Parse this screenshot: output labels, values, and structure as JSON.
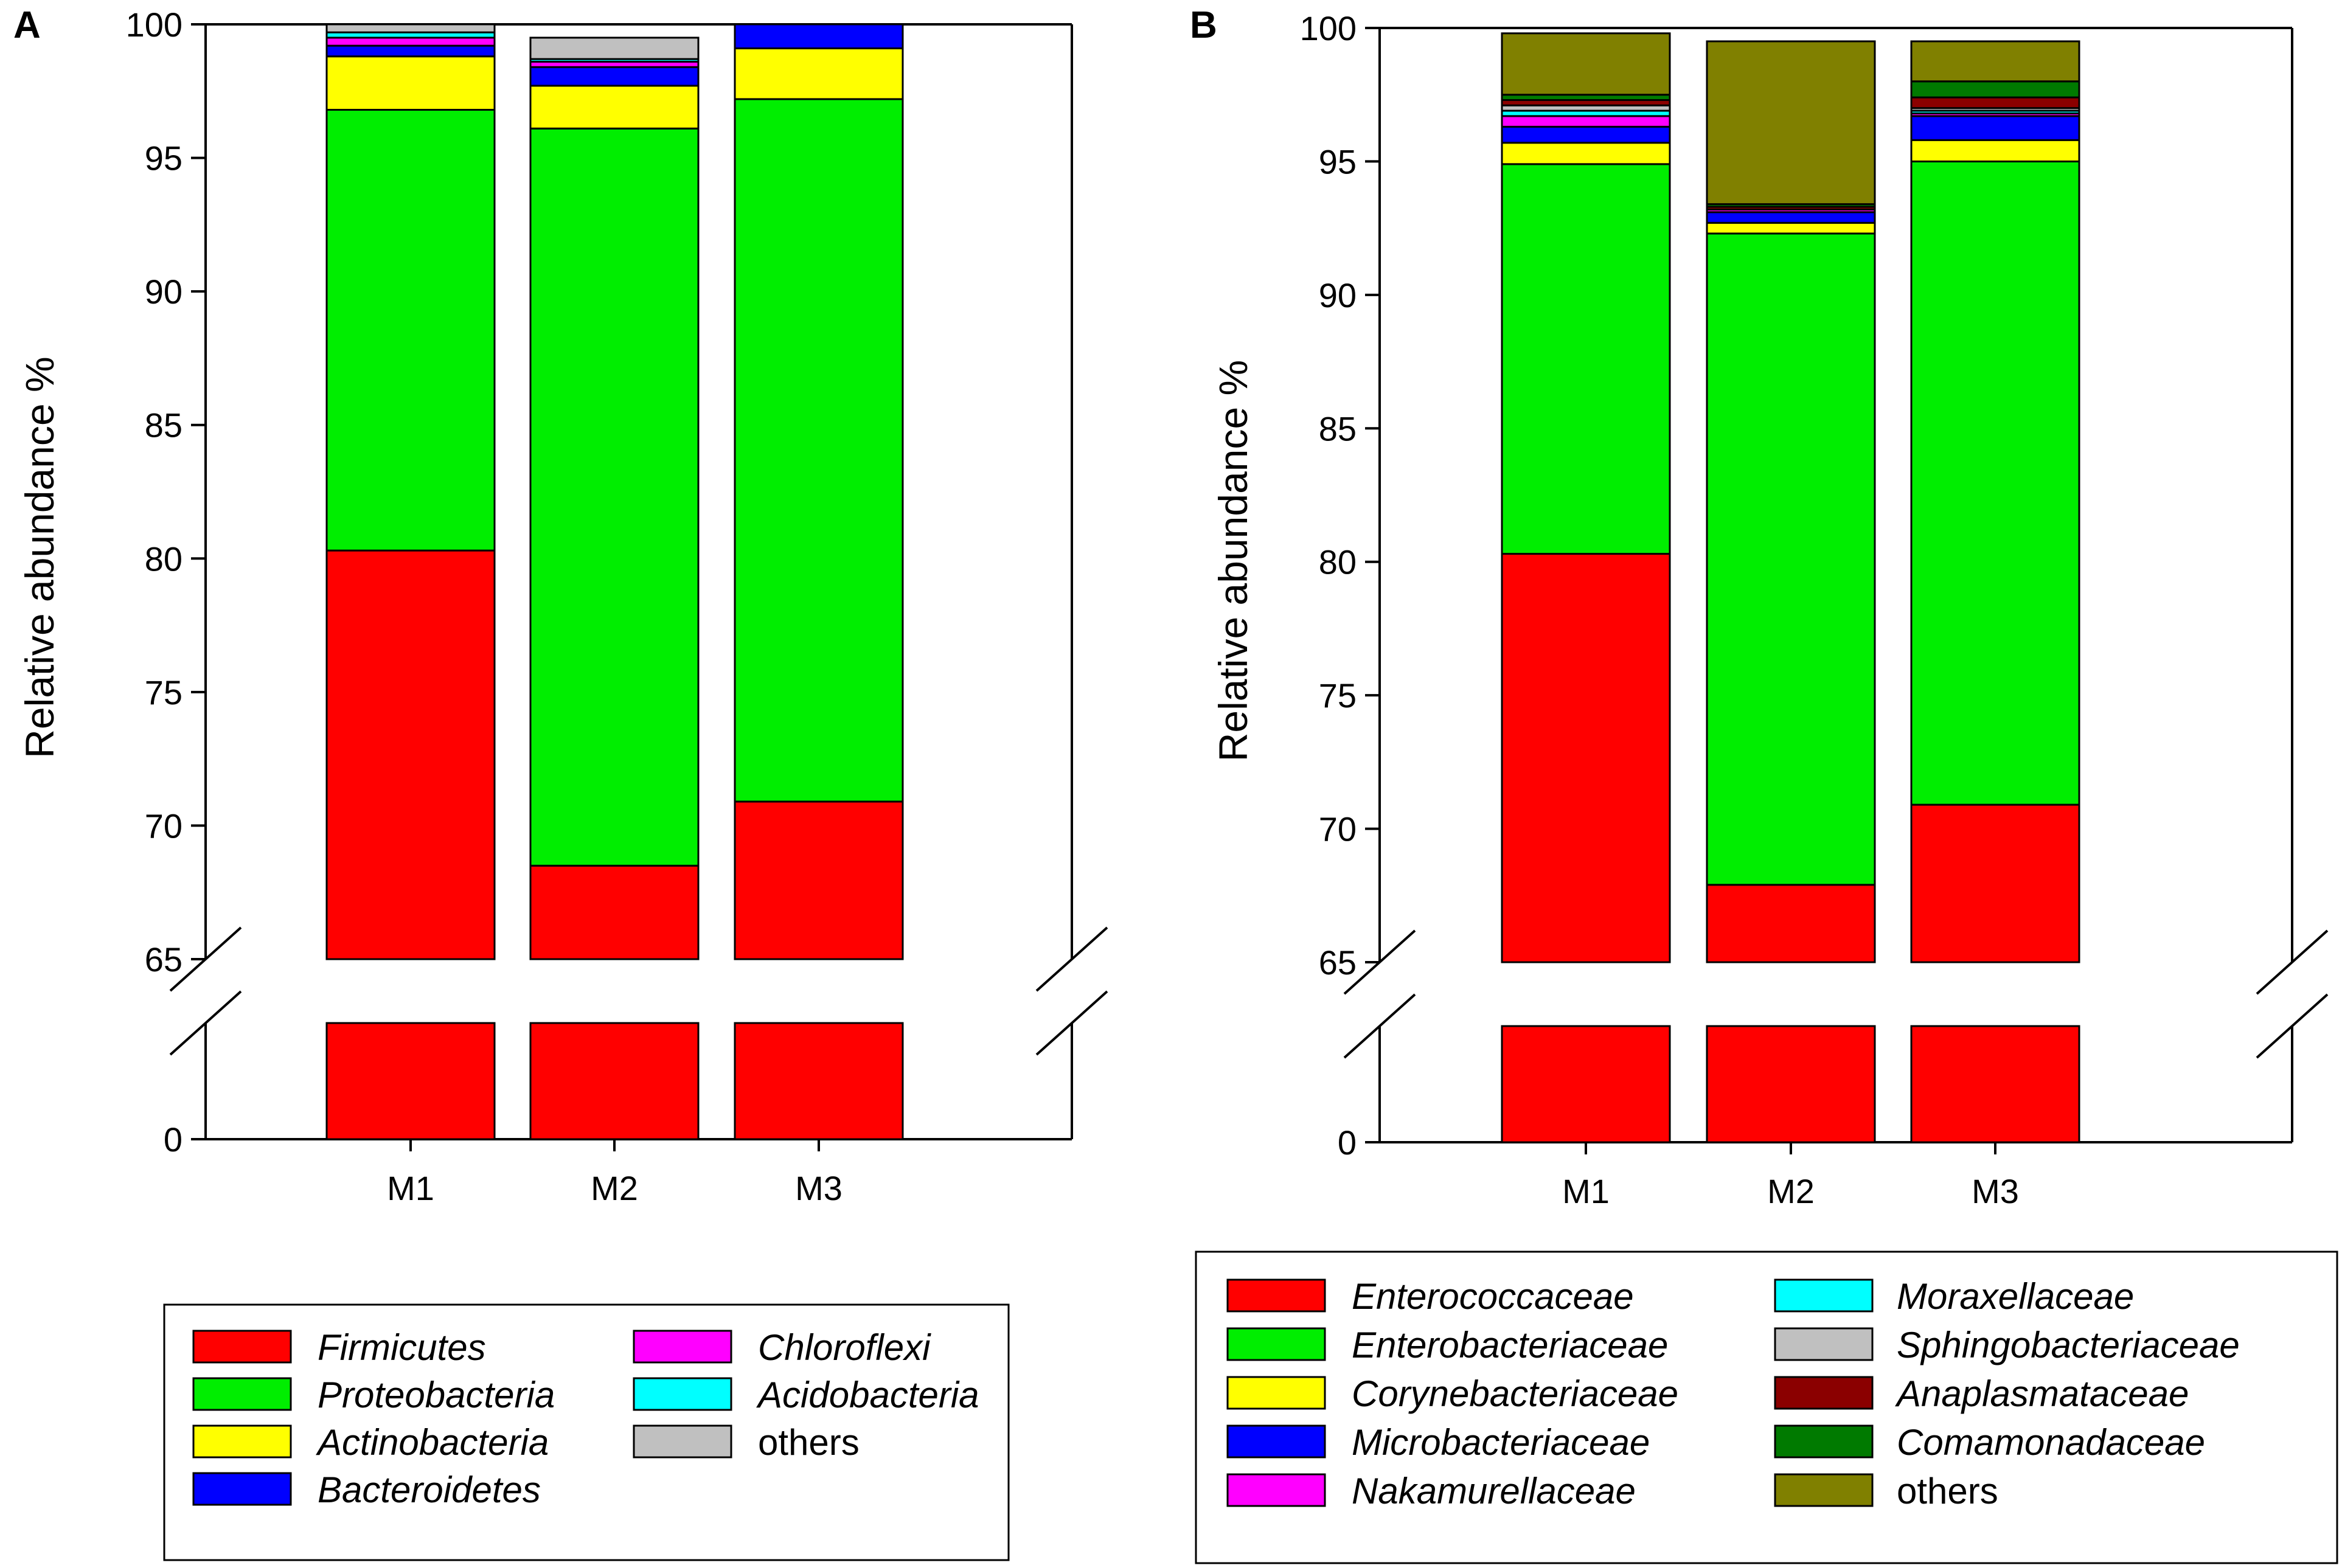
{
  "chart_data": [
    {
      "type": "bar",
      "stacked": true,
      "panel_label": "A",
      "ylabel": "Relative abundance %",
      "xlabel": "",
      "categories": [
        "M1",
        "M2",
        "M3"
      ],
      "y_tick_labels": [
        "0",
        "65",
        "70",
        "75",
        "80",
        "85",
        "90",
        "95",
        "100"
      ],
      "axis_break": {
        "lower_range": [
          0,
          65
        ],
        "upper_range": [
          65,
          100
        ]
      },
      "ylim": [
        65,
        100
      ],
      "legend_position": "bottom",
      "series": [
        {
          "name": "Firmicutes",
          "italic": true,
          "color": "#ff0000",
          "values": [
            80.3,
            68.5,
            70.9
          ]
        },
        {
          "name": "Proteobacteria",
          "italic": true,
          "color": "#00ee00",
          "values": [
            16.5,
            27.6,
            26.3
          ]
        },
        {
          "name": "Actinobacteria",
          "italic": true,
          "color": "#ffff00",
          "values": [
            2.0,
            1.6,
            1.9
          ]
        },
        {
          "name": "Bacteroidetes",
          "italic": true,
          "color": "#0000ff",
          "values": [
            0.4,
            0.7,
            0.9
          ]
        },
        {
          "name": "Chloroflexi",
          "italic": true,
          "color": "#ff00ff",
          "values": [
            0.3,
            0.2,
            0.0
          ]
        },
        {
          "name": "Acidobacteria",
          "italic": true,
          "color": "#00ffff",
          "values": [
            0.2,
            0.1,
            0.0
          ]
        },
        {
          "name": "others",
          "italic": false,
          "color": "#c0c0c0",
          "values": [
            0.3,
            0.8,
            0.0
          ]
        }
      ]
    },
    {
      "type": "bar",
      "stacked": true,
      "panel_label": "B",
      "ylabel": "Relative abundance %",
      "xlabel": "",
      "categories": [
        "M1",
        "M2",
        "M3"
      ],
      "y_tick_labels": [
        "0",
        "65",
        "70",
        "75",
        "80",
        "85",
        "90",
        "95",
        "100"
      ],
      "axis_break": {
        "lower_range": [
          0,
          65
        ],
        "upper_range": [
          65,
          100
        ]
      },
      "ylim": [
        65,
        100
      ],
      "legend_position": "bottom",
      "series": [
        {
          "name": "Enterococcaceae",
          "italic": true,
          "color": "#ff0000",
          "values": [
            80.3,
            67.9,
            70.9
          ]
        },
        {
          "name": "Enterobacteriaceae",
          "italic": true,
          "color": "#00ee00",
          "values": [
            14.6,
            24.4,
            24.1
          ]
        },
        {
          "name": "Corynebacteriaceae",
          "italic": true,
          "color": "#ffff00",
          "values": [
            0.8,
            0.4,
            0.8
          ]
        },
        {
          "name": "Microbacteriaceae",
          "italic": true,
          "color": "#0000ff",
          "values": [
            0.6,
            0.4,
            0.9
          ]
        },
        {
          "name": "Nakamurellaceae",
          "italic": true,
          "color": "#ff00ff",
          "values": [
            0.4,
            0.1,
            0.1
          ]
        },
        {
          "name": "Moraxellaceae",
          "italic": true,
          "color": "#00ffff",
          "values": [
            0.2,
            0.0,
            0.1
          ]
        },
        {
          "name": "Sphingobacteriaceae",
          "italic": true,
          "color": "#c0c0c0",
          "values": [
            0.2,
            0.0,
            0.1
          ]
        },
        {
          "name": "Anaplasmataceae",
          "italic": true,
          "color": "#8b0000",
          "values": [
            0.2,
            0.1,
            0.4
          ]
        },
        {
          "name": "Comamonadaceae",
          "italic": true,
          "color": "#007a00",
          "values": [
            0.2,
            0.1,
            0.6
          ]
        },
        {
          "name": "others",
          "italic": false,
          "color": "#808000",
          "values": [
            2.3,
            6.1,
            1.5
          ]
        }
      ]
    }
  ]
}
